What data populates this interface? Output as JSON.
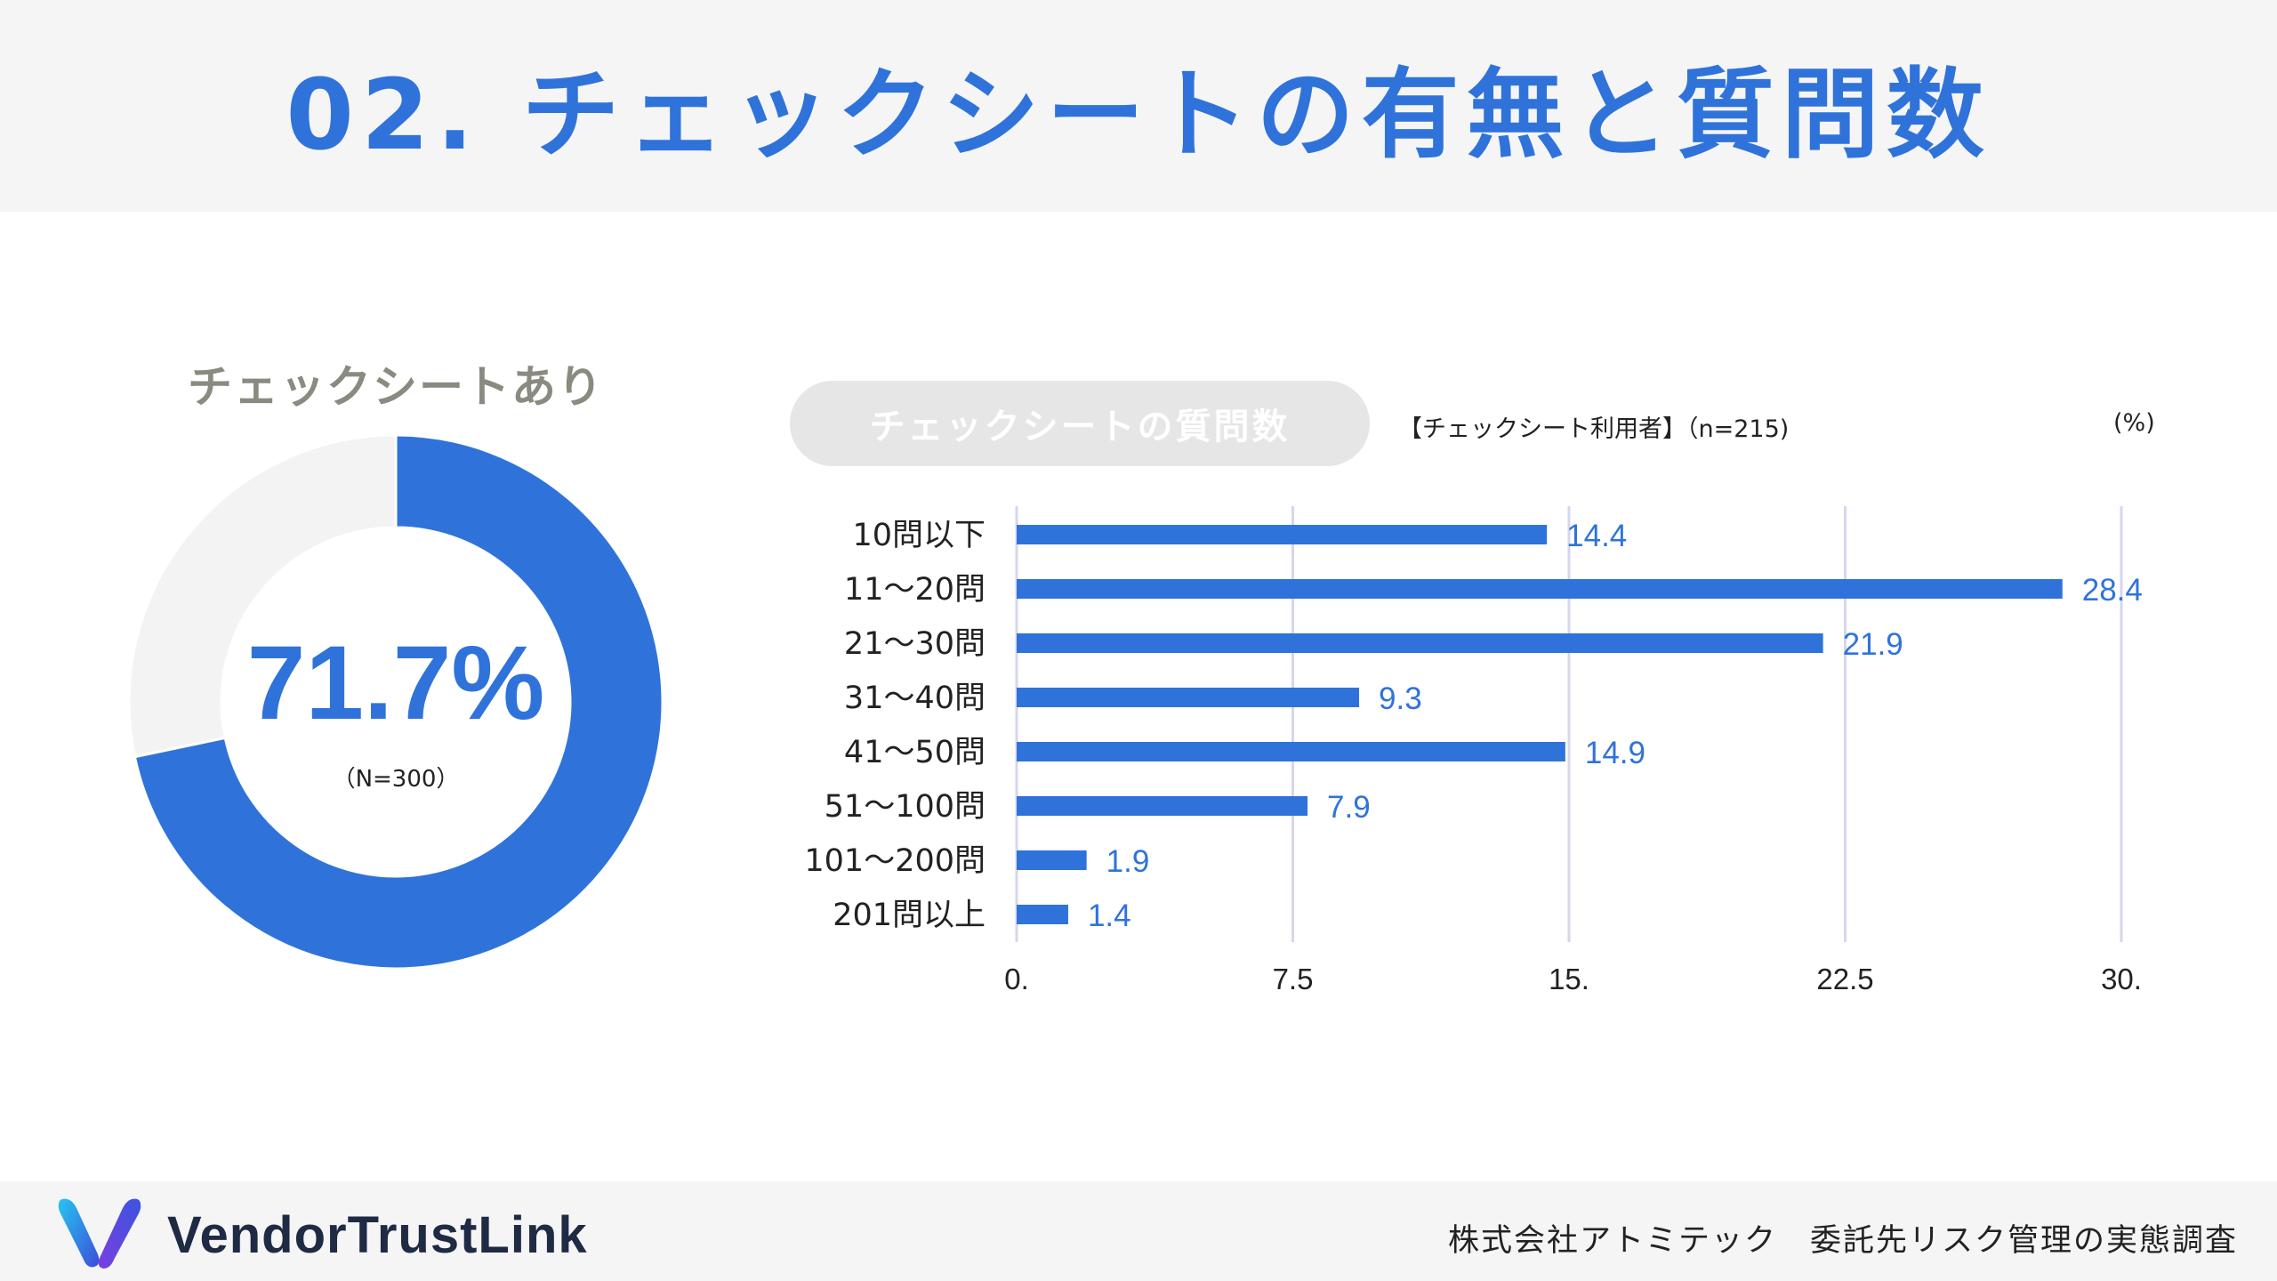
{
  "header": {
    "title": "02. チェックシートの有無と質問数"
  },
  "donut": {
    "title": "チェックシートあり",
    "value_label": "71.7%",
    "n_label": "（N=300）"
  },
  "bar_section": {
    "pill_label": "チェックシートの質問数",
    "subnote": "【チェックシート利用者】（n=215)",
    "unit": "(%)"
  },
  "footer": {
    "logo_text": "VendorTrustLink",
    "right_text": "株式会社アトミテック　委託先リスク管理の実態調査"
  },
  "colors": {
    "accent": "#2f73da",
    "donut_rest": "#f3f3f3",
    "grid": "#d6d6ec",
    "title_gray": "#8a8a80"
  },
  "chart_data": [
    {
      "type": "pie",
      "title": "チェックシートあり",
      "categories": [
        "チェックシートあり",
        ""
      ],
      "values": [
        71.7,
        28.3
      ],
      "center_label": "71.7%",
      "note": "（N=300）"
    },
    {
      "type": "bar",
      "orientation": "horizontal",
      "title": "チェックシートの質問数",
      "categories": [
        "10問以下",
        "11〜20問",
        "21〜30問",
        "31〜40問",
        "41〜50問",
        "51〜100問",
        "101〜200問",
        "201問以上"
      ],
      "values": [
        14.4,
        28.4,
        21.9,
        9.3,
        14.9,
        7.9,
        1.9,
        1.4
      ],
      "xlim": [
        0,
        30
      ],
      "xticks": [
        "0.",
        "7.5",
        "15.",
        "22.5",
        "30."
      ],
      "xtick_values": [
        0,
        7.5,
        15,
        22.5,
        30
      ],
      "grid": true,
      "unit": "(%)"
    }
  ]
}
